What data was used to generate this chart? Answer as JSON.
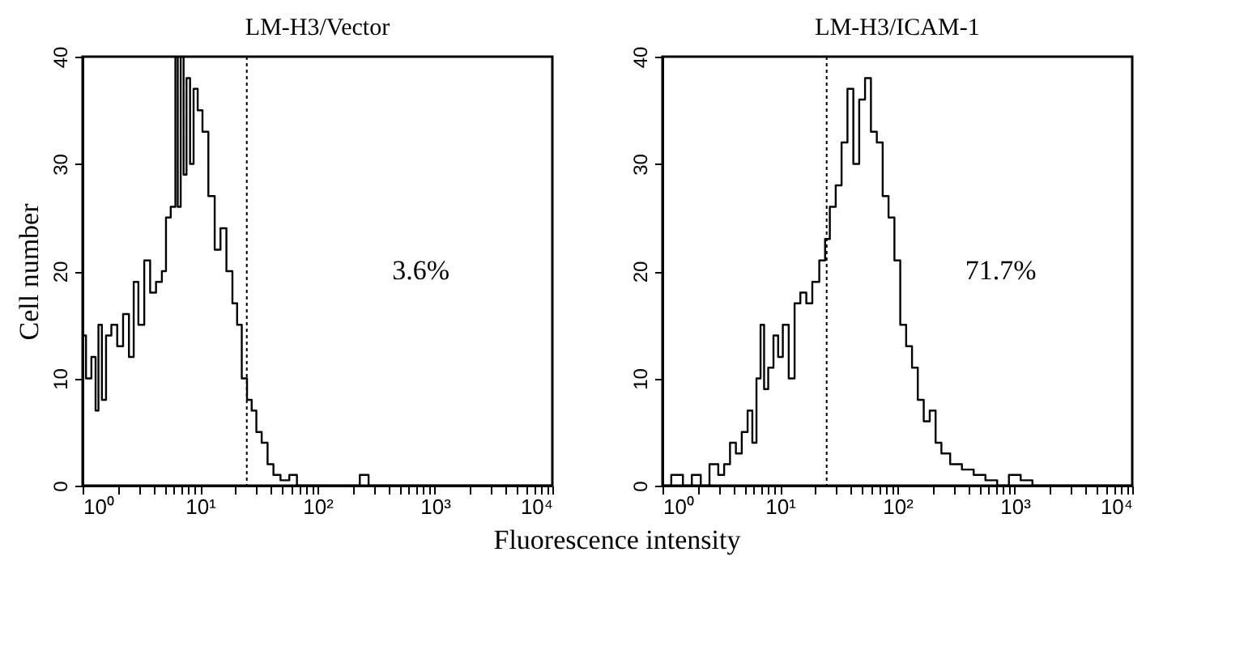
{
  "chart_data": [
    {
      "type": "step",
      "title": "LM-H3/Vector",
      "xlabel": "Fluorescence intensity",
      "ylabel": "Cell number",
      "log": "x",
      "grid": false,
      "xlim": [
        1,
        10000
      ],
      "ylim": [
        0,
        40
      ],
      "yticks": [
        0,
        10,
        20,
        30,
        40
      ],
      "xticks": [
        {
          "value": 1,
          "label": "10⁰"
        },
        {
          "value": 2,
          "label": null
        },
        {
          "value": 3,
          "label": null
        },
        {
          "value": 4,
          "label": null
        },
        {
          "value": 5,
          "label": null
        },
        {
          "value": 6,
          "label": null
        },
        {
          "value": 7,
          "label": null
        },
        {
          "value": 8,
          "label": null
        },
        {
          "value": 9,
          "label": null
        },
        {
          "value": 10,
          "label": "10¹"
        },
        {
          "value": 20,
          "label": null
        },
        {
          "value": 30,
          "label": null
        },
        {
          "value": 40,
          "label": null
        },
        {
          "value": 50,
          "label": null
        },
        {
          "value": 60,
          "label": null
        },
        {
          "value": 70,
          "label": null
        },
        {
          "value": 80,
          "label": null
        },
        {
          "value": 90,
          "label": null
        },
        {
          "value": 100,
          "label": "10²"
        },
        {
          "value": 200,
          "label": null
        },
        {
          "value": 300,
          "label": null
        },
        {
          "value": 400,
          "label": null
        },
        {
          "value": 500,
          "label": null
        },
        {
          "value": 600,
          "label": null
        },
        {
          "value": 700,
          "label": null
        },
        {
          "value": 800,
          "label": null
        },
        {
          "value": 900,
          "label": null
        },
        {
          "value": 1000,
          "label": "10³"
        },
        {
          "value": 2000,
          "label": null
        },
        {
          "value": 3000,
          "label": null
        },
        {
          "value": 4000,
          "label": null
        },
        {
          "value": 5000,
          "label": null
        },
        {
          "value": 6000,
          "label": null
        },
        {
          "value": 7000,
          "label": null
        },
        {
          "value": 8000,
          "label": null
        },
        {
          "value": 9000,
          "label": null
        },
        {
          "value": 10000,
          "label": "10⁴"
        }
      ],
      "ref_lines": [
        {
          "axis": "x",
          "value": 25,
          "line_style": "dotted",
          "color": "#000000"
        }
      ],
      "annotations": [
        "3.6%"
      ],
      "series": [
        {
          "color": "#000000",
          "x": [
            1,
            1.02,
            1.12,
            1.26,
            1.32,
            1.41,
            1.51,
            1.66,
            1.86,
            2.09,
            2.34,
            2.63,
            2.82,
            3.16,
            3.55,
            3.98,
            4.47,
            5.01,
            5.25,
            6.03,
            6.31,
            6.61,
            7.08,
            7.41,
            7.94,
            8.51,
            9.12,
            10,
            11,
            12.6,
            14.1,
            15.8,
            17.8,
            20,
            21.4,
            24,
            26.3,
            28.8,
            31.6,
            35.5,
            39.8,
            44.7,
            52.5,
            63.1,
            70.8,
            200,
            263,
            282,
            10000
          ],
          "values": [
            28,
            14,
            10,
            12,
            7,
            15,
            8,
            14,
            15,
            13,
            16,
            12,
            19,
            15,
            21,
            18,
            19,
            20,
            25,
            26,
            40,
            26,
            40,
            29,
            38,
            30,
            37,
            35,
            33,
            27,
            22,
            24,
            20,
            17,
            15,
            10,
            8,
            7,
            5,
            4,
            2,
            1,
            0.5,
            1,
            0,
            0,
            1,
            0,
            0
          ]
        }
      ]
    },
    {
      "type": "step",
      "title": "LM-H3/ICAM-1",
      "log": "x",
      "grid": false,
      "xlim": [
        1,
        10000
      ],
      "ylim": [
        0,
        40
      ],
      "yticks": [
        0,
        10,
        20,
        30,
        40
      ],
      "xticks": [
        {
          "value": 1,
          "label": "10⁰"
        },
        {
          "value": 2,
          "label": null
        },
        {
          "value": 3,
          "label": null
        },
        {
          "value": 4,
          "label": null
        },
        {
          "value": 5,
          "label": null
        },
        {
          "value": 6,
          "label": null
        },
        {
          "value": 7,
          "label": null
        },
        {
          "value": 8,
          "label": null
        },
        {
          "value": 9,
          "label": null
        },
        {
          "value": 10,
          "label": "10¹"
        },
        {
          "value": 20,
          "label": null
        },
        {
          "value": 30,
          "label": null
        },
        {
          "value": 40,
          "label": null
        },
        {
          "value": 50,
          "label": null
        },
        {
          "value": 60,
          "label": null
        },
        {
          "value": 70,
          "label": null
        },
        {
          "value": 80,
          "label": null
        },
        {
          "value": 90,
          "label": null
        },
        {
          "value": 100,
          "label": "10²"
        },
        {
          "value": 200,
          "label": null
        },
        {
          "value": 300,
          "label": null
        },
        {
          "value": 400,
          "label": null
        },
        {
          "value": 500,
          "label": null
        },
        {
          "value": 600,
          "label": null
        },
        {
          "value": 700,
          "label": null
        },
        {
          "value": 800,
          "label": null
        },
        {
          "value": 900,
          "label": null
        },
        {
          "value": 1000,
          "label": "10³"
        },
        {
          "value": 2000,
          "label": null
        },
        {
          "value": 3000,
          "label": null
        },
        {
          "value": 4000,
          "label": null
        },
        {
          "value": 5000,
          "label": null
        },
        {
          "value": 6000,
          "label": null
        },
        {
          "value": 7000,
          "label": null
        },
        {
          "value": 8000,
          "label": null
        },
        {
          "value": 9000,
          "label": null
        },
        {
          "value": 10000,
          "label": "10⁴"
        }
      ],
      "ref_lines": [
        {
          "axis": "x",
          "value": 25,
          "line_style": "dotted",
          "color": "#000000"
        }
      ],
      "annotations": [
        "71.7%"
      ],
      "series": [
        {
          "color": "#000000",
          "x": [
            1,
            1.41,
            1.58,
            2,
            2.24,
            2.82,
            3.16,
            3.55,
            3.98,
            4.47,
            5.01,
            5.62,
            6.03,
            6.61,
            7.08,
            7.59,
            8.32,
            9.33,
            10,
            11.2,
            12.6,
            14.1,
            15.8,
            17.8,
            20,
            23.4,
            25.1,
            28.2,
            31.6,
            35.5,
            39.8,
            44.7,
            50.1,
            56.2,
            63.1,
            70.8,
            79.4,
            89.1,
            100,
            112,
            126,
            141,
            158,
            178,
            200,
            224,
            251,
            316,
            398,
            501,
            631,
            794,
            1000,
            1259,
            1585,
            10000
          ],
          "values": [
            0,
            1,
            0,
            1,
            0,
            2,
            1,
            2,
            4,
            3,
            5,
            7,
            4,
            10,
            15,
            9,
            11,
            14,
            12,
            15,
            10,
            17,
            18,
            17,
            19,
            21,
            23,
            26,
            28,
            32,
            37,
            30,
            36,
            38,
            33,
            32,
            27,
            25,
            21,
            15,
            13,
            11,
            8,
            6,
            7,
            4,
            3,
            2,
            1.5,
            1,
            0.5,
            0,
            1,
            0.5,
            0,
            0
          ]
        }
      ]
    }
  ]
}
